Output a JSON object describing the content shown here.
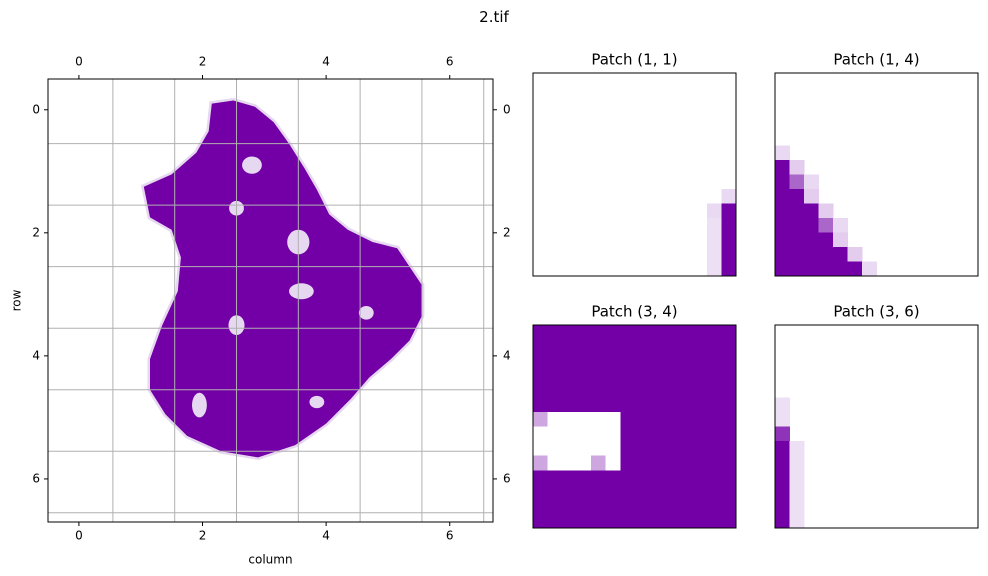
{
  "figure": {
    "suptitle": "2.tif"
  },
  "colors": {
    "fill": "#7300a6",
    "grid": "#b0b0b0",
    "axis": "#000000",
    "background": "#ffffff"
  },
  "chart_data": [
    {
      "type": "heatmap",
      "title": "",
      "xlabel": "column",
      "ylabel": "row",
      "xlim": [
        -0.5,
        6.7
      ],
      "ylim": [
        6.7,
        -0.5
      ],
      "x_ticks": [
        0,
        2,
        4,
        6
      ],
      "y_ticks": [
        0,
        2,
        4,
        6
      ],
      "x_ticks_top": [
        0,
        2,
        4,
        6
      ],
      "y_ticks_right": [
        0,
        2,
        4,
        6
      ],
      "grid": true,
      "grid_lines_x": [
        0.55,
        1.55,
        2.55,
        3.55,
        4.55,
        5.55,
        6.55
      ],
      "grid_lines_y": [
        0.55,
        1.55,
        2.55,
        3.55,
        4.55,
        5.55,
        6.55
      ],
      "shape_outline": [
        [
          2.15,
          -0.1
        ],
        [
          2.5,
          -0.15
        ],
        [
          2.85,
          -0.05
        ],
        [
          3.15,
          0.2
        ],
        [
          3.4,
          0.55
        ],
        [
          3.65,
          0.95
        ],
        [
          3.85,
          1.3
        ],
        [
          4.05,
          1.7
        ],
        [
          4.35,
          1.95
        ],
        [
          4.75,
          2.15
        ],
        [
          5.15,
          2.25
        ],
        [
          5.35,
          2.55
        ],
        [
          5.55,
          2.85
        ],
        [
          5.55,
          3.35
        ],
        [
          5.35,
          3.75
        ],
        [
          5.05,
          4.05
        ],
        [
          4.7,
          4.35
        ],
        [
          4.4,
          4.7
        ],
        [
          4.0,
          5.1
        ],
        [
          3.5,
          5.45
        ],
        [
          2.9,
          5.65
        ],
        [
          2.3,
          5.55
        ],
        [
          1.75,
          5.3
        ],
        [
          1.4,
          4.95
        ],
        [
          1.15,
          4.55
        ],
        [
          1.15,
          4.05
        ],
        [
          1.35,
          3.5
        ],
        [
          1.6,
          2.95
        ],
        [
          1.65,
          2.4
        ],
        [
          1.5,
          1.95
        ],
        [
          1.15,
          1.75
        ],
        [
          1.05,
          1.25
        ],
        [
          1.5,
          1.05
        ],
        [
          1.9,
          0.7
        ],
        [
          2.1,
          0.35
        ]
      ],
      "holes": [
        {
          "cx": 2.8,
          "cy": 0.9,
          "rx": 0.16,
          "ry": 0.14
        },
        {
          "cx": 2.55,
          "cy": 1.6,
          "rx": 0.12,
          "ry": 0.12
        },
        {
          "cx": 3.55,
          "cy": 2.15,
          "rx": 0.18,
          "ry": 0.2
        },
        {
          "cx": 3.6,
          "cy": 2.95,
          "rx": 0.2,
          "ry": 0.13
        },
        {
          "cx": 4.65,
          "cy": 3.3,
          "rx": 0.12,
          "ry": 0.11
        },
        {
          "cx": 2.55,
          "cy": 3.5,
          "rx": 0.13,
          "ry": 0.16
        },
        {
          "cx": 1.95,
          "cy": 4.8,
          "rx": 0.12,
          "ry": 0.2
        },
        {
          "cx": 3.85,
          "cy": 4.75,
          "rx": 0.12,
          "ry": 0.1
        }
      ]
    },
    {
      "type": "heatmap",
      "title": "Patch (1, 1)",
      "grid": false,
      "grid_size": [
        14,
        14
      ],
      "cells": [
        {
          "r": 8,
          "c": 13,
          "v": 0.15
        },
        {
          "r": 9,
          "c": 12,
          "v": 0.15
        },
        {
          "r": 9,
          "c": 13,
          "v": 1.0
        },
        {
          "r": 10,
          "c": 12,
          "v": 0.12
        },
        {
          "r": 10,
          "c": 13,
          "v": 1.0
        },
        {
          "r": 11,
          "c": 12,
          "v": 0.12
        },
        {
          "r": 11,
          "c": 13,
          "v": 1.0
        },
        {
          "r": 12,
          "c": 12,
          "v": 0.12
        },
        {
          "r": 12,
          "c": 13,
          "v": 1.0
        },
        {
          "r": 13,
          "c": 12,
          "v": 0.12
        },
        {
          "r": 13,
          "c": 13,
          "v": 1.0
        }
      ]
    },
    {
      "type": "heatmap",
      "title": "Patch (1, 4)",
      "grid": false,
      "grid_size": [
        14,
        14
      ],
      "cells": [
        {
          "r": 5,
          "c": 0,
          "v": 0.15
        },
        {
          "r": 6,
          "c": 0,
          "v": 1.0
        },
        {
          "r": 6,
          "c": 1,
          "v": 0.2
        },
        {
          "r": 7,
          "c": 0,
          "v": 1.0
        },
        {
          "r": 7,
          "c": 1,
          "v": 0.6
        },
        {
          "r": 7,
          "c": 2,
          "v": 0.15
        },
        {
          "r": 8,
          "c": 0,
          "v": 1.0
        },
        {
          "r": 8,
          "c": 1,
          "v": 1.0
        },
        {
          "r": 8,
          "c": 2,
          "v": 0.2
        },
        {
          "r": 9,
          "c": 0,
          "v": 1.0
        },
        {
          "r": 9,
          "c": 1,
          "v": 1.0
        },
        {
          "r": 9,
          "c": 2,
          "v": 1.0
        },
        {
          "r": 9,
          "c": 3,
          "v": 0.2
        },
        {
          "r": 10,
          "c": 0,
          "v": 1.0
        },
        {
          "r": 10,
          "c": 1,
          "v": 1.0
        },
        {
          "r": 10,
          "c": 2,
          "v": 1.0
        },
        {
          "r": 10,
          "c": 3,
          "v": 0.6
        },
        {
          "r": 10,
          "c": 4,
          "v": 0.15
        },
        {
          "r": 11,
          "c": 0,
          "v": 1.0
        },
        {
          "r": 11,
          "c": 1,
          "v": 1.0
        },
        {
          "r": 11,
          "c": 2,
          "v": 1.0
        },
        {
          "r": 11,
          "c": 3,
          "v": 1.0
        },
        {
          "r": 11,
          "c": 4,
          "v": 0.2
        },
        {
          "r": 12,
          "c": 0,
          "v": 1.0
        },
        {
          "r": 12,
          "c": 1,
          "v": 1.0
        },
        {
          "r": 12,
          "c": 2,
          "v": 1.0
        },
        {
          "r": 12,
          "c": 3,
          "v": 1.0
        },
        {
          "r": 12,
          "c": 4,
          "v": 1.0
        },
        {
          "r": 12,
          "c": 5,
          "v": 0.2
        },
        {
          "r": 13,
          "c": 0,
          "v": 1.0
        },
        {
          "r": 13,
          "c": 1,
          "v": 1.0
        },
        {
          "r": 13,
          "c": 2,
          "v": 1.0
        },
        {
          "r": 13,
          "c": 3,
          "v": 1.0
        },
        {
          "r": 13,
          "c": 4,
          "v": 1.0
        },
        {
          "r": 13,
          "c": 5,
          "v": 1.0
        },
        {
          "r": 13,
          "c": 6,
          "v": 0.15
        }
      ]
    },
    {
      "type": "heatmap",
      "title": "Patch (3, 4)",
      "grid": false,
      "grid_size": [
        14,
        14
      ],
      "background_value": 1.0,
      "cells": [
        {
          "r": 6,
          "c": 0,
          "v": 0.35
        },
        {
          "r": 7,
          "c": 0,
          "v": 0
        },
        {
          "r": 7,
          "c": 1,
          "v": 0
        },
        {
          "r": 7,
          "c": 2,
          "v": 0
        },
        {
          "r": 7,
          "c": 3,
          "v": 0
        },
        {
          "r": 7,
          "c": 4,
          "v": 0
        },
        {
          "r": 7,
          "c": 5,
          "v": 0
        },
        {
          "r": 6,
          "c": 1,
          "v": 0
        },
        {
          "r": 6,
          "c": 2,
          "v": 0
        },
        {
          "r": 6,
          "c": 3,
          "v": 0
        },
        {
          "r": 6,
          "c": 4,
          "v": 0
        },
        {
          "r": 6,
          "c": 5,
          "v": 0
        },
        {
          "r": 8,
          "c": 0,
          "v": 0
        },
        {
          "r": 8,
          "c": 1,
          "v": 0
        },
        {
          "r": 8,
          "c": 2,
          "v": 0
        },
        {
          "r": 8,
          "c": 3,
          "v": 0
        },
        {
          "r": 8,
          "c": 4,
          "v": 0
        },
        {
          "r": 8,
          "c": 5,
          "v": 0
        },
        {
          "r": 9,
          "c": 0,
          "v": 0.35
        },
        {
          "r": 9,
          "c": 1,
          "v": 0
        },
        {
          "r": 9,
          "c": 2,
          "v": 0
        },
        {
          "r": 9,
          "c": 3,
          "v": 0
        },
        {
          "r": 9,
          "c": 4,
          "v": 0.35
        },
        {
          "r": 9,
          "c": 5,
          "v": 0
        }
      ]
    },
    {
      "type": "heatmap",
      "title": "Patch (3, 6)",
      "grid": false,
      "grid_size": [
        14,
        14
      ],
      "cells": [
        {
          "r": 5,
          "c": 0,
          "v": 0.12
        },
        {
          "r": 6,
          "c": 0,
          "v": 0.12
        },
        {
          "r": 7,
          "c": 0,
          "v": 0.8
        },
        {
          "r": 8,
          "c": 0,
          "v": 1.0
        },
        {
          "r": 8,
          "c": 1,
          "v": 0.12
        },
        {
          "r": 9,
          "c": 0,
          "v": 1.0
        },
        {
          "r": 9,
          "c": 1,
          "v": 0.12
        },
        {
          "r": 10,
          "c": 0,
          "v": 1.0
        },
        {
          "r": 10,
          "c": 1,
          "v": 0.12
        },
        {
          "r": 11,
          "c": 0,
          "v": 1.0
        },
        {
          "r": 11,
          "c": 1,
          "v": 0.12
        },
        {
          "r": 12,
          "c": 0,
          "v": 1.0
        },
        {
          "r": 12,
          "c": 1,
          "v": 0.12
        },
        {
          "r": 13,
          "c": 0,
          "v": 1.0
        },
        {
          "r": 13,
          "c": 1,
          "v": 0.12
        }
      ]
    }
  ]
}
